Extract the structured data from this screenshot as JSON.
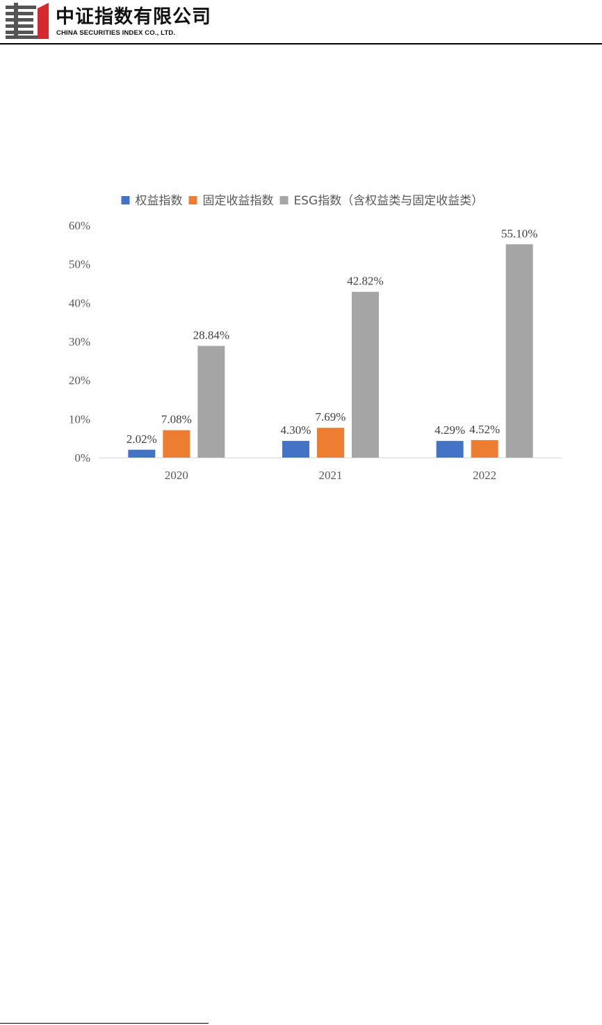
{
  "header": {
    "logo_cn": "中证指数有限公司",
    "logo_en": "CHINA SECURITIES INDEX CO., LTD.",
    "brand_colors": {
      "red": "#d7282f",
      "gray": "#555555"
    }
  },
  "chart_data": {
    "type": "bar",
    "categories": [
      "2020",
      "2021",
      "2022"
    ],
    "series": [
      {
        "name": "权益指数",
        "values": [
          2.02,
          4.3,
          4.29
        ],
        "labels": [
          "2.02%",
          "4.30%",
          "4.29%"
        ],
        "color": "#4472c4"
      },
      {
        "name": "固定收益指数",
        "values": [
          7.08,
          7.69,
          4.52
        ],
        "labels": [
          "7.08%",
          "7.69%",
          "4.52%"
        ],
        "color": "#ed7d31"
      },
      {
        "name": "ESG指数（含权益类与固定收益类）",
        "values": [
          28.84,
          42.82,
          55.1
        ],
        "labels": [
          "28.84%",
          "42.82%",
          "55.10%"
        ],
        "color": "#a5a5a5"
      }
    ],
    "yticks": [
      "0%",
      "10%",
      "20%",
      "30%",
      "40%",
      "50%",
      "60%"
    ],
    "ylim": [
      0,
      60
    ],
    "legend": "top",
    "grid": false,
    "title": "",
    "xlabel": "",
    "ylabel": ""
  }
}
